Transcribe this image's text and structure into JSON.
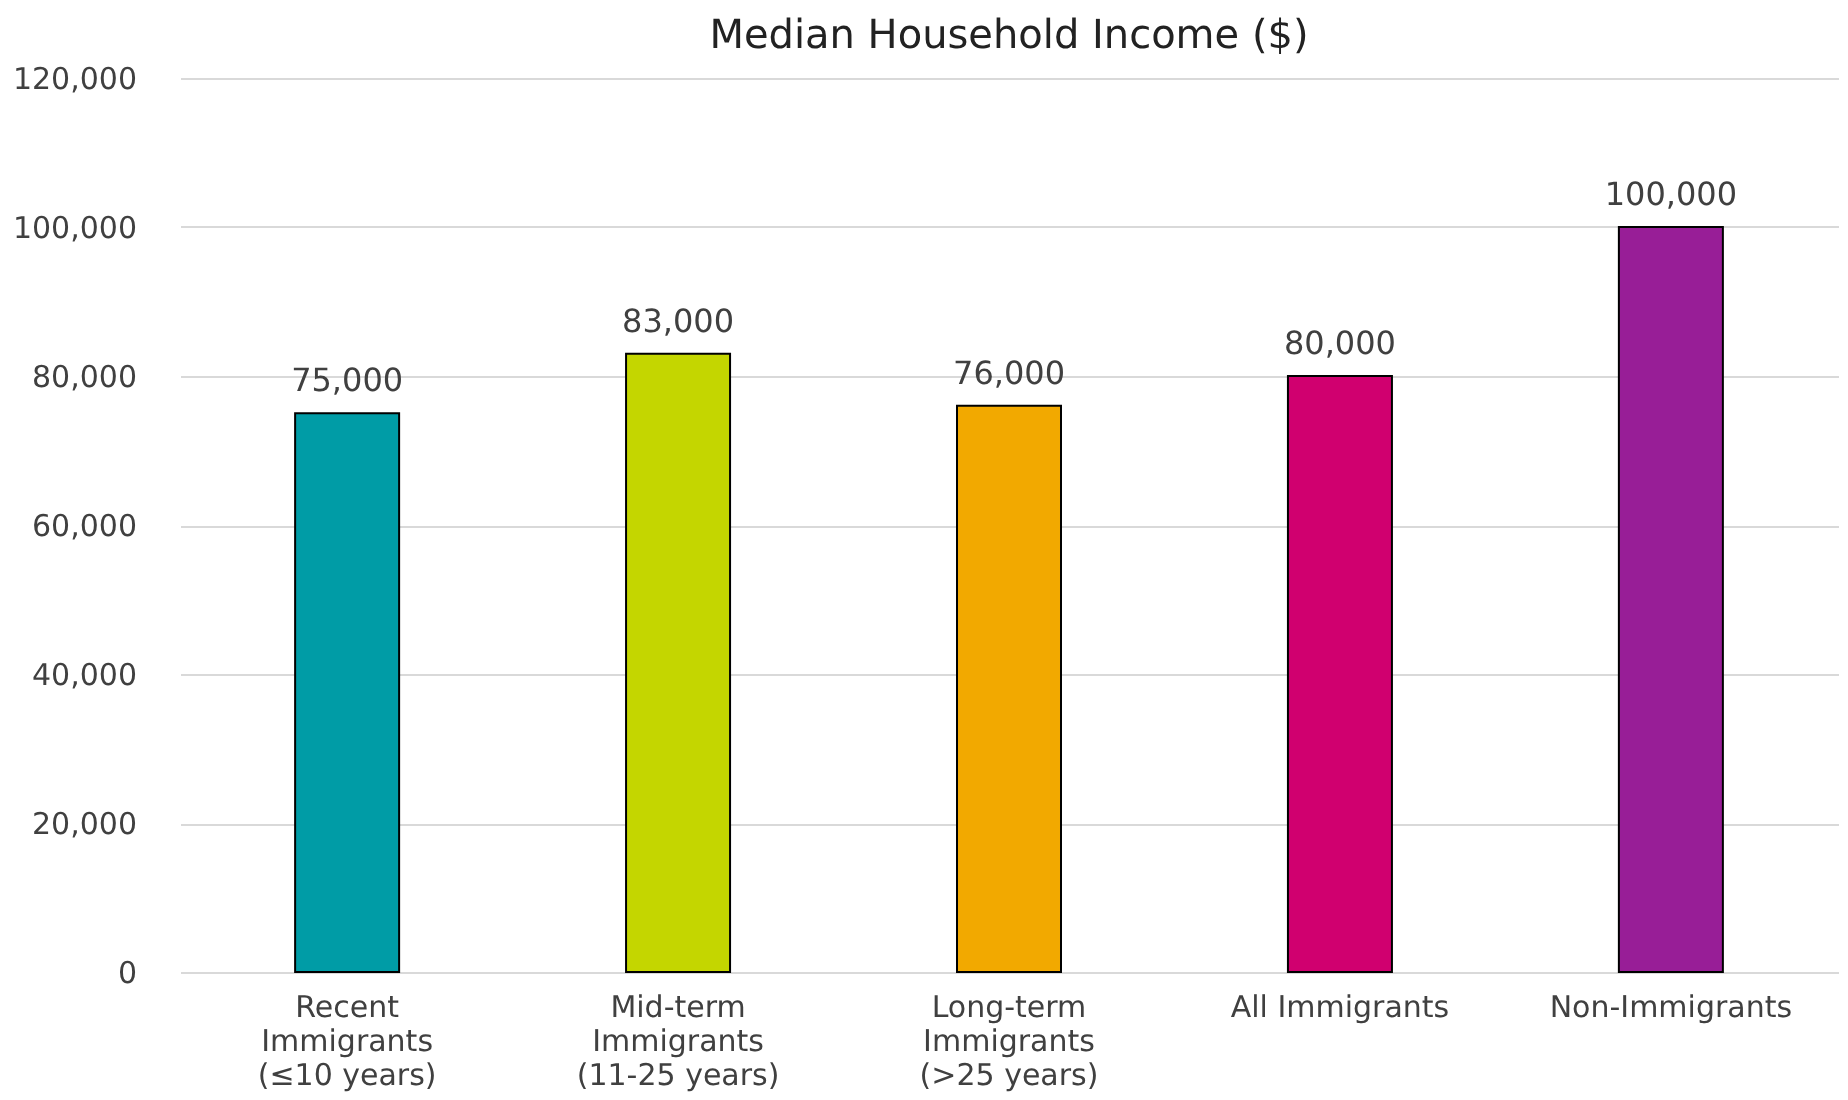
{
  "chart_data": {
    "type": "bar",
    "title": "Median Household Income ($)",
    "categories": [
      "Recent\nImmigrants\n(≤10 years)",
      "Mid-term\nImmigrants\n(11-25 years)",
      "Long-term\nImmigrants\n(>25 years)",
      "All Immigrants",
      "Non-Immigrants"
    ],
    "values": [
      75000,
      83000,
      76000,
      80000,
      100000
    ],
    "value_labels": [
      "75,000",
      "83,000",
      "76,000",
      "80,000",
      "100,000"
    ],
    "colors": [
      "#009ca6",
      "#c4d600",
      "#f2a900",
      "#d0006f",
      "#981e97"
    ],
    "ylim": [
      0,
      120000
    ],
    "yticks": [
      0,
      {
        "value": 20000,
        "label": "20,000"
      },
      {
        "value": 40000,
        "label": "40,000"
      },
      {
        "value": 60000,
        "label": "60,000"
      },
      {
        "value": 80000,
        "label": "80,000"
      },
      {
        "value": 100000,
        "label": "100,000"
      },
      {
        "value": 120000,
        "label": "120,000"
      }
    ],
    "grid": "y"
  }
}
